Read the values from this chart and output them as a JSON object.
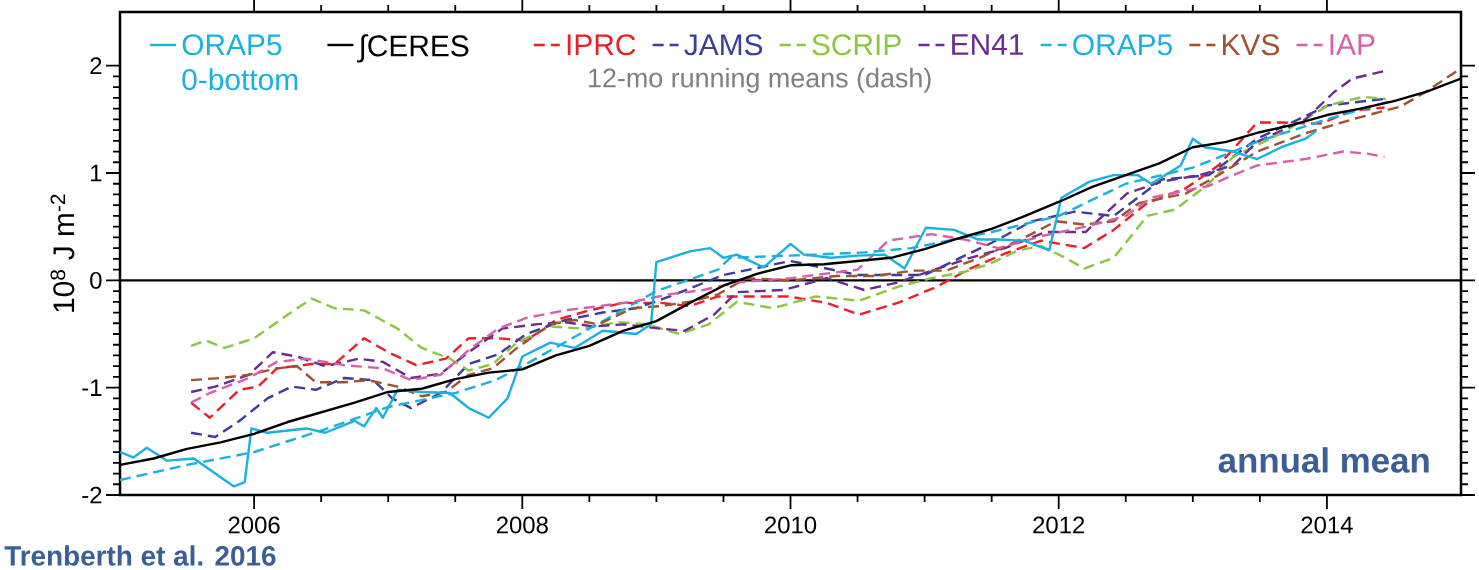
{
  "chart_data": {
    "type": "line",
    "ylabel": "10$^{8}$ J m$^{-2}$",
    "xlim": [
      2005,
      2015
    ],
    "ylim": [
      -2,
      2.5
    ],
    "xticks": [
      2006,
      2008,
      2010,
      2012,
      2014
    ],
    "yticks": [
      -2,
      -1,
      0,
      1,
      2
    ],
    "legend": "top",
    "ref_lines": [
      {
        "axis": "y",
        "value": 0,
        "color": "#000000"
      }
    ],
    "annotations": [
      "12-mo running means (dash)",
      "annual mean",
      "Trenberth et al. 2016"
    ],
    "series": [
      {
        "name": "ORAP5 0-bottom",
        "color": "#1ab0e0",
        "line_style": "solid",
        "x": [
          2005.0,
          2005.1,
          2005.2,
          2005.35,
          2005.55,
          2005.7,
          2005.85,
          2005.93,
          2005.98,
          2006.1,
          2006.39,
          2006.53,
          2006.75,
          2006.82,
          2006.91,
          2006.96,
          2007.07,
          2007.25,
          2007.46,
          2007.6,
          2007.75,
          2007.89,
          2008.0,
          2008.21,
          2008.39,
          2008.6,
          2008.85,
          2008.96,
          2009.0,
          2009.25,
          2009.4,
          2009.5,
          2009.6,
          2009.8,
          2010.0,
          2010.1,
          2010.3,
          2010.5,
          2010.7,
          2010.85,
          2011.01,
          2011.22,
          2011.4,
          2011.55,
          2011.74,
          2011.93,
          2012.02,
          2012.23,
          2012.41,
          2012.59,
          2012.69,
          2012.91,
          2013.0,
          2013.09,
          2013.3,
          2013.48,
          2013.66,
          2013.84,
          2013.92
        ],
        "values": [
          -1.6,
          -1.65,
          -1.56,
          -1.68,
          -1.66,
          -1.79,
          -1.92,
          -1.88,
          -1.38,
          -1.42,
          -1.38,
          -1.42,
          -1.31,
          -1.36,
          -1.19,
          -1.28,
          -1.02,
          -1.04,
          -1.05,
          -1.19,
          -1.28,
          -1.1,
          -0.71,
          -0.58,
          -0.63,
          -0.47,
          -0.5,
          -0.41,
          0.17,
          0.27,
          0.3,
          0.21,
          0.24,
          0.12,
          0.34,
          0.24,
          0.21,
          0.23,
          0.24,
          0.11,
          0.49,
          0.47,
          0.38,
          0.38,
          0.37,
          0.28,
          0.77,
          0.92,
          0.98,
          0.98,
          0.9,
          1.07,
          1.32,
          1.24,
          1.2,
          1.13,
          1.24,
          1.32,
          1.39
        ]
      },
      {
        "name": "∫CERES",
        "color": "#000000",
        "line_style": "solid",
        "x": [
          2005.0,
          2005.25,
          2005.5,
          2005.75,
          2006.0,
          2006.25,
          2006.5,
          2006.75,
          2007.0,
          2007.25,
          2007.5,
          2007.75,
          2008.0,
          2008.25,
          2008.5,
          2008.75,
          2009.0,
          2009.25,
          2009.5,
          2009.75,
          2010.0,
          2010.25,
          2010.5,
          2010.75,
          2011.0,
          2011.25,
          2011.5,
          2011.75,
          2012.0,
          2012.25,
          2012.5,
          2012.75,
          2013.0,
          2013.25,
          2013.5,
          2013.75,
          2014.0,
          2014.25,
          2014.5,
          2014.75,
          2015.0
        ],
        "values": [
          -1.72,
          -1.66,
          -1.57,
          -1.51,
          -1.43,
          -1.32,
          -1.23,
          -1.14,
          -1.04,
          -1.01,
          -0.92,
          -0.86,
          -0.83,
          -0.7,
          -0.61,
          -0.47,
          -0.38,
          -0.21,
          -0.05,
          0.06,
          0.14,
          0.15,
          0.18,
          0.21,
          0.29,
          0.39,
          0.48,
          0.6,
          0.73,
          0.87,
          0.98,
          1.09,
          1.24,
          1.29,
          1.38,
          1.45,
          1.54,
          1.6,
          1.67,
          1.76,
          1.88
        ]
      },
      {
        "name": "IPRC",
        "color": "#e8202a",
        "line_style": "dashed",
        "x": [
          2005.53,
          2005.67,
          2005.89,
          2006.03,
          2006.17,
          2006.43,
          2006.6,
          2006.82,
          2007.0,
          2007.21,
          2007.43,
          2007.6,
          2007.82,
          2008.03,
          2008.25,
          2008.5,
          2008.75,
          2009.03,
          2009.25,
          2009.46,
          2009.7,
          2009.98,
          2010.27,
          2010.51,
          2010.8,
          2011.09,
          2011.34,
          2011.6,
          2011.87,
          2012.19,
          2012.41,
          2012.66,
          2012.95,
          2013.19,
          2013.48,
          2013.66,
          2013.95,
          2014.19,
          2014.43
        ],
        "values": [
          -1.14,
          -1.28,
          -1.02,
          -0.99,
          -0.82,
          -0.78,
          -0.78,
          -0.54,
          -0.67,
          -0.79,
          -0.73,
          -0.54,
          -0.54,
          -0.56,
          -0.37,
          -0.28,
          -0.21,
          -0.21,
          -0.24,
          -0.15,
          -0.15,
          -0.15,
          -0.21,
          -0.32,
          -0.21,
          -0.06,
          0.11,
          0.25,
          0.37,
          0.3,
          0.47,
          0.72,
          0.86,
          1.07,
          1.47,
          1.47,
          1.46,
          1.58,
          1.61
        ]
      },
      {
        "name": "JAMS",
        "color": "#3b3d9b",
        "line_style": "dashed",
        "x": [
          2005.53,
          2005.71,
          2005.89,
          2006.1,
          2006.28,
          2006.46,
          2006.67,
          2006.89,
          2007.03,
          2007.17,
          2007.39,
          2007.6,
          2007.82,
          2008.03,
          2008.32,
          2008.6,
          2008.85,
          2009.1,
          2009.5,
          2010.0,
          2010.5,
          2011.0,
          2011.5,
          2011.8,
          2012.12,
          2012.41,
          2012.77,
          2013.12,
          2013.48,
          2014.01,
          2014.43
        ],
        "values": [
          -1.42,
          -1.46,
          -1.31,
          -1.1,
          -0.99,
          -1.02,
          -0.91,
          -0.93,
          -1.1,
          -1.19,
          -1.05,
          -0.78,
          -0.69,
          -0.5,
          -0.37,
          -0.3,
          -0.26,
          -0.15,
          0.05,
          0.18,
          0.05,
          0.05,
          0.35,
          0.55,
          0.64,
          0.6,
          0.94,
          0.98,
          1.32,
          1.63,
          1.69
        ]
      },
      {
        "name": "SCRIP",
        "color": "#8cc63f",
        "line_style": "dashed",
        "x": [
          2005.53,
          2005.64,
          2005.78,
          2006.0,
          2006.25,
          2006.43,
          2006.6,
          2006.82,
          2007.07,
          2007.25,
          2007.46,
          2007.6,
          2007.78,
          2007.96,
          2008.21,
          2008.46,
          2008.71,
          2008.93,
          2009.17,
          2009.39,
          2009.6,
          2009.87,
          2010.19,
          2010.51,
          2010.8,
          2011.05,
          2011.3,
          2011.48,
          2011.7,
          2011.87,
          2012.05,
          2012.19,
          2012.41,
          2012.66,
          2012.87,
          2013.12,
          2013.3,
          2013.66,
          2014.01,
          2014.27,
          2014.44
        ],
        "values": [
          -0.61,
          -0.56,
          -0.63,
          -0.54,
          -0.32,
          -0.17,
          -0.26,
          -0.28,
          -0.45,
          -0.63,
          -0.73,
          -0.84,
          -0.78,
          -0.58,
          -0.43,
          -0.45,
          -0.39,
          -0.41,
          -0.5,
          -0.41,
          -0.2,
          -0.26,
          -0.15,
          -0.19,
          -0.06,
          0.02,
          0.08,
          0.15,
          0.28,
          0.32,
          0.21,
          0.11,
          0.21,
          0.6,
          0.66,
          0.9,
          1.15,
          1.37,
          1.63,
          1.71,
          1.69
        ]
      },
      {
        "name": "EN41",
        "color": "#6b2c91",
        "line_style": "dashed",
        "x": [
          2005.53,
          2005.71,
          2005.96,
          2006.14,
          2006.32,
          2006.53,
          2006.78,
          2006.96,
          2007.17,
          2007.39,
          2007.6,
          2007.85,
          2008.1,
          2008.32,
          2008.53,
          2008.75,
          2009.03,
          2009.21,
          2009.43,
          2009.6,
          2009.95,
          2010.27,
          2010.55,
          2010.8,
          2011.05,
          2011.34,
          2011.6,
          2011.9,
          2012.2,
          2012.51,
          2012.77,
          2013.05,
          2013.3,
          2013.48,
          2013.84,
          2014.05,
          2014.19,
          2014.43
        ],
        "values": [
          -1.04,
          -0.99,
          -0.88,
          -0.67,
          -0.71,
          -0.8,
          -0.73,
          -0.76,
          -0.91,
          -0.87,
          -0.67,
          -0.45,
          -0.41,
          -0.39,
          -0.43,
          -0.41,
          -0.45,
          -0.47,
          -0.32,
          -0.11,
          -0.09,
          0.02,
          -0.09,
          -0.02,
          0.09,
          0.21,
          0.3,
          0.45,
          0.45,
          0.81,
          0.92,
          0.98,
          1.07,
          1.29,
          1.5,
          1.75,
          1.88,
          1.95
        ]
      },
      {
        "name": "ORAP5",
        "color": "#1ab0e0",
        "line_style": "dashed",
        "x": [
          2005.0,
          2005.5,
          2006.0,
          2006.5,
          2007.0,
          2007.5,
          2007.8,
          2008.0,
          2008.5,
          2009.0,
          2009.46,
          2009.55,
          2010.19,
          2010.55,
          2010.9,
          2011.5,
          2012.0,
          2012.5,
          2013.0,
          2013.5,
          2014.0,
          2014.5
        ],
        "values": [
          -1.86,
          -1.72,
          -1.6,
          -1.4,
          -1.18,
          -1.05,
          -0.93,
          -0.8,
          -0.45,
          -0.1,
          0.1,
          0.21,
          0.24,
          0.26,
          0.3,
          0.45,
          0.6,
          0.9,
          1.05,
          1.3,
          1.5,
          1.68
        ]
      },
      {
        "name": "KVS",
        "color": "#a0522d",
        "line_style": "dashed",
        "x": [
          2005.53,
          2005.75,
          2005.96,
          2006.17,
          2006.32,
          2006.46,
          2006.67,
          2006.85,
          2007.07,
          2007.25,
          2007.43,
          2007.6,
          2007.78,
          2007.96,
          2008.21,
          2008.39,
          2008.57,
          2008.82,
          2009.03,
          2009.25,
          2009.46,
          2009.67,
          2010.01,
          2010.34,
          2010.63,
          2010.91,
          2011.16,
          2011.41,
          2011.7,
          2011.98,
          2012.19,
          2012.41,
          2012.6,
          2012.95,
          2013.19,
          2013.48,
          2013.84,
          2014.19,
          2014.55,
          2014.73,
          2014.98
        ],
        "values": [
          -0.93,
          -0.91,
          -0.88,
          -0.82,
          -0.8,
          -0.95,
          -0.95,
          -0.93,
          -0.99,
          -1.08,
          -1.04,
          -0.88,
          -0.82,
          -0.63,
          -0.41,
          -0.37,
          -0.41,
          -0.26,
          -0.24,
          -0.2,
          -0.13,
          0.02,
          0.0,
          0.04,
          0.04,
          0.09,
          0.09,
          0.21,
          0.37,
          0.55,
          0.52,
          0.55,
          0.72,
          0.81,
          0.98,
          1.2,
          1.37,
          1.5,
          1.62,
          1.75,
          1.96
        ]
      },
      {
        "name": "IAP",
        "color": "#d660aa",
        "line_style": "dashed",
        "x": [
          2005.53,
          2005.67,
          2005.96,
          2006.17,
          2006.39,
          2006.67,
          2006.96,
          2007.17,
          2007.39,
          2007.6,
          2007.82,
          2008.03,
          2008.32,
          2008.57,
          2008.82,
          2009.1,
          2009.35,
          2009.6,
          2010.0,
          2010.5,
          2010.73,
          2011.05,
          2011.3,
          2011.55,
          2011.9,
          2012.2,
          2012.5,
          2012.69,
          2013.12,
          2013.3,
          2013.48,
          2013.84,
          2014.12,
          2014.3,
          2014.43
        ],
        "values": [
          -1.14,
          -1.05,
          -0.91,
          -0.76,
          -0.73,
          -0.79,
          -0.82,
          -0.93,
          -0.88,
          -0.65,
          -0.45,
          -0.35,
          -0.28,
          -0.24,
          -0.2,
          -0.13,
          -0.09,
          -0.02,
          0.02,
          0.1,
          0.37,
          0.43,
          0.38,
          0.3,
          0.42,
          0.5,
          0.6,
          0.77,
          0.88,
          0.98,
          1.07,
          1.13,
          1.2,
          1.18,
          1.15
        ]
      }
    ]
  }
}
